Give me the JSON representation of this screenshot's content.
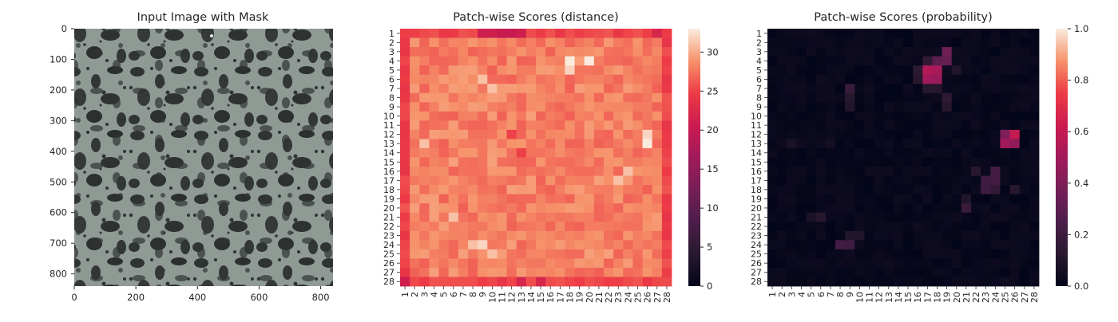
{
  "panels": [
    {
      "title": "Input Image with Mask",
      "x_ticks": [
        "0",
        "200",
        "400",
        "600",
        "800"
      ],
      "y_ticks": [
        "0",
        "100",
        "200",
        "300",
        "400",
        "500",
        "600",
        "700",
        "800"
      ]
    },
    {
      "title": "Patch-wise Scores (distance)",
      "colorbar_ticks": [
        "0",
        "5",
        "10",
        "15",
        "20",
        "25",
        "30"
      ]
    },
    {
      "title": "Patch-wise Scores (probability)",
      "colorbar_ticks": [
        "0.0",
        "0.2",
        "0.4",
        "0.6",
        "0.8",
        "1.0"
      ]
    }
  ],
  "chart_data": [
    {
      "type": "image",
      "title": "Input Image with Mask",
      "xlim": [
        0,
        840
      ],
      "ylim": [
        840,
        0
      ],
      "x_ticks": [
        0,
        200,
        400,
        600,
        800
      ],
      "y_ticks": [
        0,
        100,
        200,
        300,
        400,
        500,
        600,
        700,
        800
      ],
      "description_colors": {
        "light": "#8f9a94",
        "dark": "#2f3332"
      }
    },
    {
      "type": "heatmap",
      "title": "Patch-wise Scores (distance)",
      "rows": 28,
      "cols": 28,
      "row_labels": [
        "1",
        "2",
        "3",
        "4",
        "5",
        "6",
        "7",
        "8",
        "9",
        "10",
        "11",
        "12",
        "13",
        "14",
        "15",
        "16",
        "17",
        "18",
        "19",
        "20",
        "21",
        "22",
        "23",
        "24",
        "25",
        "26",
        "27",
        "28"
      ],
      "col_labels": [
        "1",
        "2",
        "3",
        "4",
        "5",
        "6",
        "7",
        "8",
        "9",
        "10",
        "11",
        "12",
        "13",
        "14",
        "15",
        "16",
        "17",
        "18",
        "19",
        "20",
        "21",
        "22",
        "23",
        "24",
        "25",
        "26",
        "27",
        "28"
      ],
      "vmin": 0,
      "vmax": 33,
      "colormap": "rocket",
      "border_value": 24,
      "interior_base": 28,
      "hotspots": [
        {
          "row": 4,
          "col": 18,
          "value": 33
        },
        {
          "row": 4,
          "col": 20,
          "value": 33
        },
        {
          "row": 5,
          "col": 18,
          "value": 32
        },
        {
          "row": 6,
          "col": 9,
          "value": 31
        },
        {
          "row": 7,
          "col": 10,
          "value": 31
        },
        {
          "row": 13,
          "col": 26,
          "value": 33
        },
        {
          "row": 12,
          "col": 26,
          "value": 32
        },
        {
          "row": 13,
          "col": 3,
          "value": 31
        },
        {
          "row": 16,
          "col": 24,
          "value": 31
        },
        {
          "row": 17,
          "col": 23,
          "value": 31
        },
        {
          "row": 21,
          "col": 6,
          "value": 31
        },
        {
          "row": 24,
          "col": 9,
          "value": 32
        },
        {
          "row": 24,
          "col": 8,
          "value": 31
        },
        {
          "row": 25,
          "col": 10,
          "value": 31
        }
      ],
      "coldspots": [
        {
          "row": 1,
          "col": 9,
          "value": 21
        },
        {
          "row": 1,
          "col": 10,
          "value": 21
        },
        {
          "row": 1,
          "col": 11,
          "value": 20
        },
        {
          "row": 1,
          "col": 12,
          "value": 20
        },
        {
          "row": 1,
          "col": 13,
          "value": 21
        },
        {
          "row": 28,
          "col": 1,
          "value": 21
        },
        {
          "row": 28,
          "col": 13,
          "value": 22
        },
        {
          "row": 28,
          "col": 15,
          "value": 22
        },
        {
          "row": 1,
          "col": 27,
          "value": 22
        },
        {
          "row": 12,
          "col": 12,
          "value": 25
        },
        {
          "row": 14,
          "col": 13,
          "value": 25
        }
      ],
      "colorbar_ticks": [
        0,
        5,
        10,
        15,
        20,
        25,
        30
      ]
    },
    {
      "type": "heatmap",
      "title": "Patch-wise Scores (probability)",
      "rows": 28,
      "cols": 28,
      "row_labels": [
        "1",
        "2",
        "3",
        "4",
        "5",
        "6",
        "7",
        "8",
        "9",
        "10",
        "11",
        "12",
        "13",
        "14",
        "15",
        "16",
        "17",
        "18",
        "19",
        "20",
        "21",
        "22",
        "23",
        "24",
        "25",
        "26",
        "27",
        "28"
      ],
      "col_labels": [
        "1",
        "2",
        "3",
        "4",
        "5",
        "6",
        "7",
        "8",
        "9",
        "10",
        "11",
        "12",
        "13",
        "14",
        "15",
        "16",
        "17",
        "18",
        "19",
        "20",
        "21",
        "22",
        "23",
        "24",
        "25",
        "26",
        "27",
        "28"
      ],
      "vmin": 0,
      "vmax": 1,
      "colormap": "rocket",
      "background_value": 0.02,
      "hotspots": [
        {
          "row": 5,
          "col": 17,
          "value": 0.55
        },
        {
          "row": 5,
          "col": 18,
          "value": 0.52
        },
        {
          "row": 6,
          "col": 17,
          "value": 0.5
        },
        {
          "row": 6,
          "col": 18,
          "value": 0.48
        },
        {
          "row": 4,
          "col": 18,
          "value": 0.3
        },
        {
          "row": 3,
          "col": 19,
          "value": 0.35
        },
        {
          "row": 4,
          "col": 19,
          "value": 0.32
        },
        {
          "row": 4,
          "col": 17,
          "value": 0.15
        },
        {
          "row": 5,
          "col": 16,
          "value": 0.14
        },
        {
          "row": 6,
          "col": 16,
          "value": 0.12
        },
        {
          "row": 7,
          "col": 17,
          "value": 0.12
        },
        {
          "row": 7,
          "col": 18,
          "value": 0.12
        },
        {
          "row": 8,
          "col": 19,
          "value": 0.15
        },
        {
          "row": 9,
          "col": 19,
          "value": 0.12
        },
        {
          "row": 5,
          "col": 20,
          "value": 0.1
        },
        {
          "row": 7,
          "col": 9,
          "value": 0.18
        },
        {
          "row": 8,
          "col": 9,
          "value": 0.12
        },
        {
          "row": 9,
          "col": 9,
          "value": 0.1
        },
        {
          "row": 12,
          "col": 26,
          "value": 0.6
        },
        {
          "row": 13,
          "col": 26,
          "value": 0.45
        },
        {
          "row": 12,
          "col": 25,
          "value": 0.4
        },
        {
          "row": 13,
          "col": 25,
          "value": 0.5
        },
        {
          "row": 16,
          "col": 24,
          "value": 0.22
        },
        {
          "row": 17,
          "col": 23,
          "value": 0.2
        },
        {
          "row": 17,
          "col": 24,
          "value": 0.22
        },
        {
          "row": 18,
          "col": 23,
          "value": 0.2
        },
        {
          "row": 18,
          "col": 24,
          "value": 0.16
        },
        {
          "row": 16,
          "col": 22,
          "value": 0.12
        },
        {
          "row": 18,
          "col": 26,
          "value": 0.12
        },
        {
          "row": 19,
          "col": 21,
          "value": 0.1
        },
        {
          "row": 20,
          "col": 21,
          "value": 0.18
        },
        {
          "row": 24,
          "col": 8,
          "value": 0.22
        },
        {
          "row": 24,
          "col": 9,
          "value": 0.2
        },
        {
          "row": 23,
          "col": 9,
          "value": 0.1
        },
        {
          "row": 23,
          "col": 10,
          "value": 0.1
        },
        {
          "row": 21,
          "col": 6,
          "value": 0.12
        },
        {
          "row": 21,
          "col": 5,
          "value": 0.08
        },
        {
          "row": 13,
          "col": 3,
          "value": 0.08
        },
        {
          "row": 13,
          "col": 7,
          "value": 0.06
        }
      ],
      "colorbar_ticks": [
        0.0,
        0.2,
        0.4,
        0.6,
        0.8,
        1.0
      ]
    }
  ]
}
